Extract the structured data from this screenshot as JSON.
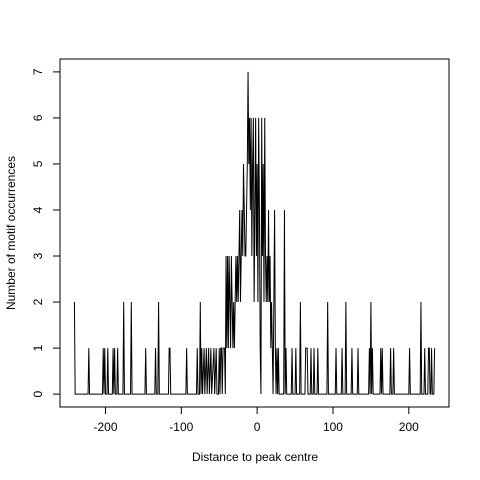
{
  "chart_data": {
    "type": "line",
    "xlabel": "Distance to peak centre",
    "ylabel": "Number of motif occurrences",
    "color": "#000000",
    "xlim": [
      -260,
      253
    ],
    "ylim": [
      -0.28,
      7.28
    ],
    "xticks": [
      -200,
      -100,
      0,
      100,
      200
    ],
    "yticks": [
      0,
      1,
      2,
      3,
      4,
      5,
      6,
      7
    ],
    "x": [
      -241,
      -240,
      -223,
      -222,
      -221,
      -204,
      -203,
      -202,
      -201,
      -200,
      -198,
      -197,
      -196,
      -191,
      -190,
      -189,
      -188,
      -187,
      -185,
      -184,
      -183,
      -177,
      -176,
      -175,
      -167,
      -166,
      -165,
      -148,
      -147,
      -146,
      -135,
      -134,
      -133,
      -131,
      -130,
      -129,
      -117,
      -116,
      -115,
      -114,
      -94,
      -93,
      -92,
      -80,
      -79,
      -78,
      -76,
      -75,
      -74,
      -73,
      -72,
      -70,
      -69,
      -67,
      -66,
      -64,
      -63,
      -61,
      -60,
      -57,
      -56,
      -54,
      -53,
      -51,
      -50,
      -49,
      -48,
      -47,
      -46,
      -45,
      -44,
      -43,
      -42,
      -41,
      -40,
      -39,
      -38,
      -37,
      -36,
      -35,
      -34,
      -33,
      -32,
      -31,
      -30,
      -29,
      -28,
      -27,
      -26,
      -25,
      -24,
      -23,
      -22,
      -21,
      -20,
      -19,
      -18,
      -17,
      -16,
      -15,
      -14,
      -13,
      -12,
      -11,
      -10,
      -9,
      -8,
      -7,
      -6,
      -5,
      -4,
      -3,
      -2,
      -1,
      0,
      1,
      2,
      3,
      4,
      5,
      6,
      7,
      8,
      9,
      10,
      11,
      12,
      13,
      14,
      15,
      16,
      17,
      18,
      19,
      20,
      21,
      22,
      23,
      24,
      25,
      26,
      27,
      28,
      29,
      35,
      36,
      37,
      38,
      39,
      45,
      46,
      47,
      50,
      51,
      52,
      56,
      57,
      58,
      63,
      64,
      65,
      66,
      67,
      70,
      71,
      72,
      74,
      75,
      76,
      79,
      80,
      81,
      92,
      93,
      94,
      103,
      104,
      105,
      111,
      112,
      113,
      116,
      117,
      118,
      124,
      125,
      126,
      132,
      133,
      134,
      147,
      148,
      149,
      150,
      151,
      152,
      153,
      162,
      163,
      164,
      165,
      166,
      175,
      176,
      177,
      179,
      180,
      181,
      200,
      201,
      202,
      215,
      216,
      217,
      220,
      221,
      222,
      225,
      226,
      227,
      228,
      229,
      230,
      231,
      233,
      234
    ],
    "values": [
      2,
      0,
      0,
      1,
      0,
      0,
      1,
      0,
      1,
      0,
      0,
      1,
      0,
      0,
      1,
      0,
      1,
      0,
      0,
      1,
      0,
      0,
      2,
      0,
      0,
      2,
      0,
      0,
      1,
      0,
      0,
      1,
      0,
      0,
      2,
      0,
      0,
      1,
      1,
      0,
      0,
      1,
      0,
      0,
      1,
      0,
      0,
      2,
      0,
      1,
      0,
      1,
      0,
      1,
      0,
      1,
      0,
      1,
      0,
      1,
      0,
      1,
      0,
      0,
      1,
      0,
      1,
      1,
      0,
      1,
      1,
      1,
      0,
      3,
      1,
      3,
      1,
      3,
      2,
      1,
      3,
      2,
      1,
      2,
      1,
      2,
      3,
      2,
      3,
      2,
      3,
      4,
      2,
      3,
      4,
      3,
      5,
      4,
      3,
      3,
      4,
      5,
      7,
      5,
      6,
      4,
      6,
      3,
      5,
      6,
      2,
      4,
      6,
      3,
      5,
      2,
      6,
      4,
      1,
      0,
      6,
      3,
      5,
      2,
      6,
      3,
      2,
      3,
      2,
      4,
      2,
      3,
      1,
      2,
      1,
      0,
      2,
      4,
      1,
      0,
      1,
      0,
      1,
      0,
      0,
      4,
      0,
      1,
      0,
      0,
      1,
      0,
      0,
      1,
      0,
      0,
      2,
      0,
      0,
      1,
      1,
      1,
      0,
      0,
      1,
      0,
      0,
      1,
      0,
      0,
      1,
      0,
      0,
      2,
      0,
      0,
      1,
      0,
      0,
      1,
      0,
      0,
      2,
      0,
      0,
      1,
      0,
      0,
      1,
      0,
      0,
      1,
      0,
      2,
      0,
      1,
      0,
      0,
      1,
      0,
      1,
      0,
      0,
      1,
      0,
      0,
      1,
      0,
      0,
      1,
      0,
      0,
      2,
      0,
      0,
      1,
      0,
      0,
      1,
      1,
      0,
      0,
      1,
      0,
      0,
      1
    ]
  }
}
